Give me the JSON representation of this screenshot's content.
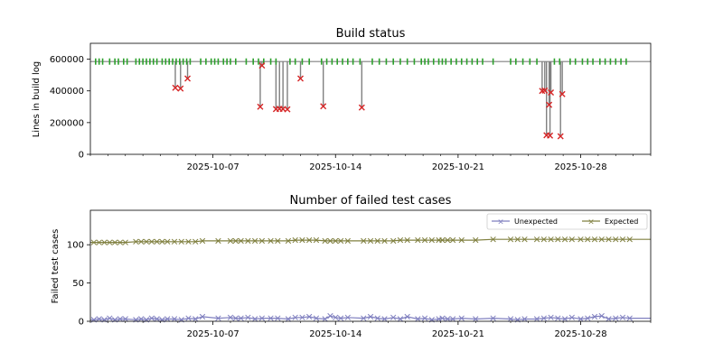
{
  "chart_data": [
    {
      "type": "line",
      "title": "Build status",
      "xlabel": "",
      "ylabel": "Lines in build log",
      "ylim": [
        0,
        700000
      ],
      "yticks": [
        0,
        200000,
        400000,
        600000
      ],
      "ytick_labels": [
        "0",
        "200000",
        "400000",
        "600000"
      ],
      "xlim": [
        "2025-09-30",
        "2025-11-01"
      ],
      "xtick_labels": [
        "2025-10-07",
        "2025-10-14",
        "2025-10-21",
        "2025-10-28"
      ],
      "baseline": 585000,
      "colors": {
        "success": "#2ca02c",
        "failure": "#d62728",
        "line": "#808080"
      },
      "success_builds_day_offsets": [
        0.3,
        0.5,
        0.7,
        1.1,
        1.4,
        1.6,
        1.9,
        2.1,
        2.6,
        2.8,
        3.0,
        3.2,
        3.4,
        3.6,
        3.8,
        4.1,
        4.3,
        4.5,
        4.7,
        4.9,
        5.1,
        5.3,
        5.5,
        5.7,
        6.3,
        6.6,
        6.9,
        7.1,
        7.3,
        7.6,
        7.8,
        8.0,
        8.3,
        8.9,
        9.3,
        9.6,
        9.9,
        10.3,
        10.6,
        11.4,
        11.7,
        12.1,
        12.5,
        13.2,
        13.5,
        13.8,
        14.1,
        14.4,
        14.7,
        15.0,
        15.4,
        16.1,
        16.5,
        16.9,
        17.3,
        17.7,
        18.1,
        18.5,
        18.9,
        19.1,
        19.3,
        19.6,
        19.9,
        20.1,
        20.3,
        20.6,
        20.9,
        21.2,
        21.5,
        21.8,
        22.1,
        22.4,
        23.0,
        24.0,
        24.3,
        24.7,
        25.1,
        25.5,
        26.5,
        26.8,
        27.4,
        27.7,
        28.1,
        28.4,
        28.7,
        29.1,
        29.4,
        29.7,
        30.0,
        30.3,
        30.6
      ],
      "failed_builds": [
        {
          "day": 4.85,
          "value": 420000
        },
        {
          "day": 5.15,
          "value": 415000
        },
        {
          "day": 5.55,
          "value": 478000
        },
        {
          "day": 9.7,
          "value": 300000
        },
        {
          "day": 9.8,
          "value": 560000
        },
        {
          "day": 10.6,
          "value": 285000
        },
        {
          "day": 10.8,
          "value": 287000
        },
        {
          "day": 11.0,
          "value": 286000
        },
        {
          "day": 11.25,
          "value": 284000
        },
        {
          "day": 12.0,
          "value": 478000
        },
        {
          "day": 13.3,
          "value": 303000
        },
        {
          "day": 15.5,
          "value": 295000
        },
        {
          "day": 25.8,
          "value": 400000
        },
        {
          "day": 25.95,
          "value": 402000
        },
        {
          "day": 26.05,
          "value": 120000
        },
        {
          "day": 26.2,
          "value": 312000
        },
        {
          "day": 26.25,
          "value": 118000
        },
        {
          "day": 26.3,
          "value": 390000
        },
        {
          "day": 26.85,
          "value": 114000
        },
        {
          "day": 26.95,
          "value": 380000
        }
      ]
    },
    {
      "type": "line",
      "title": "Number of failed test cases",
      "xlabel": "",
      "ylabel": "Failed test cases",
      "ylim": [
        0,
        145
      ],
      "yticks": [
        0,
        50,
        100
      ],
      "ytick_labels": [
        "0",
        "50",
        "100"
      ],
      "xlim": [
        "2025-09-30",
        "2025-11-01"
      ],
      "xtick_labels": [
        "2025-10-07",
        "2025-10-14",
        "2025-10-21",
        "2025-10-28"
      ],
      "legend_position": "top-right",
      "series": [
        {
          "name": "Unexpected",
          "color": "#7f7fbf",
          "x": [
            0.2,
            0.5,
            0.8,
            1.1,
            1.4,
            1.7,
            2.0,
            2.6,
            2.9,
            3.2,
            3.5,
            3.8,
            4.1,
            4.4,
            4.8,
            5.2,
            5.6,
            6.0,
            6.4,
            7.3,
            8.0,
            8.3,
            8.6,
            9.0,
            9.4,
            9.8,
            10.3,
            10.7,
            11.3,
            11.7,
            12.1,
            12.5,
            12.9,
            13.4,
            13.7,
            14.0,
            14.3,
            14.7,
            15.6,
            16.0,
            16.4,
            16.8,
            17.3,
            17.7,
            18.1,
            18.7,
            19.1,
            19.5,
            19.9,
            20.1,
            20.4,
            20.7,
            21.2,
            22.0,
            23.0,
            24.0,
            24.4,
            24.8,
            25.5,
            25.9,
            26.3,
            26.7,
            27.1,
            27.5,
            28.0,
            28.4,
            28.8,
            29.2,
            29.6,
            30.0,
            30.4,
            30.8
          ],
          "values": [
            2,
            3,
            2,
            4,
            2,
            3,
            3,
            2,
            3,
            2,
            4,
            3,
            2,
            3,
            3,
            2,
            4,
            3,
            6,
            4,
            5,
            4,
            4,
            5,
            3,
            4,
            4,
            4,
            3,
            5,
            5,
            6,
            4,
            3,
            7,
            5,
            4,
            5,
            4,
            6,
            4,
            3,
            5,
            3,
            6,
            3,
            4,
            2,
            3,
            4,
            3,
            3,
            4,
            3,
            4,
            3,
            2,
            3,
            3,
            4,
            5,
            4,
            3,
            5,
            3,
            4,
            6,
            7,
            3,
            4,
            5,
            4
          ]
        },
        {
          "name": "Expected",
          "color": "#808040",
          "x": [
            0.2,
            0.5,
            0.8,
            1.1,
            1.4,
            1.7,
            2.0,
            2.6,
            2.9,
            3.2,
            3.5,
            3.8,
            4.1,
            4.4,
            4.8,
            5.2,
            5.6,
            6.0,
            6.4,
            7.3,
            8.0,
            8.3,
            8.6,
            9.0,
            9.4,
            9.8,
            10.3,
            10.7,
            11.3,
            11.7,
            12.1,
            12.5,
            12.9,
            13.4,
            13.7,
            14.0,
            14.3,
            14.7,
            15.6,
            16.0,
            16.4,
            16.8,
            17.3,
            17.7,
            18.1,
            18.7,
            19.1,
            19.5,
            19.9,
            20.1,
            20.4,
            20.7,
            21.2,
            22.0,
            23.0,
            24.0,
            24.4,
            24.8,
            25.5,
            25.9,
            26.3,
            26.7,
            27.1,
            27.5,
            28.0,
            28.4,
            28.8,
            29.2,
            29.6,
            30.0,
            30.4,
            30.8
          ],
          "values": [
            103,
            103,
            103,
            103,
            103,
            103,
            103,
            104,
            104,
            104,
            104,
            104,
            104,
            104,
            104,
            104,
            104,
            104,
            105,
            105,
            105,
            105,
            105,
            105,
            105,
            105,
            105,
            105,
            105,
            106,
            106,
            106,
            106,
            105,
            105,
            105,
            105,
            105,
            105,
            105,
            105,
            105,
            105,
            106,
            106,
            106,
            106,
            106,
            106,
            106,
            106,
            106,
            106,
            106,
            107,
            107,
            107,
            107,
            107,
            107,
            107,
            107,
            107,
            107,
            107,
            107,
            107,
            107,
            107,
            107,
            107,
            107
          ]
        }
      ]
    }
  ]
}
